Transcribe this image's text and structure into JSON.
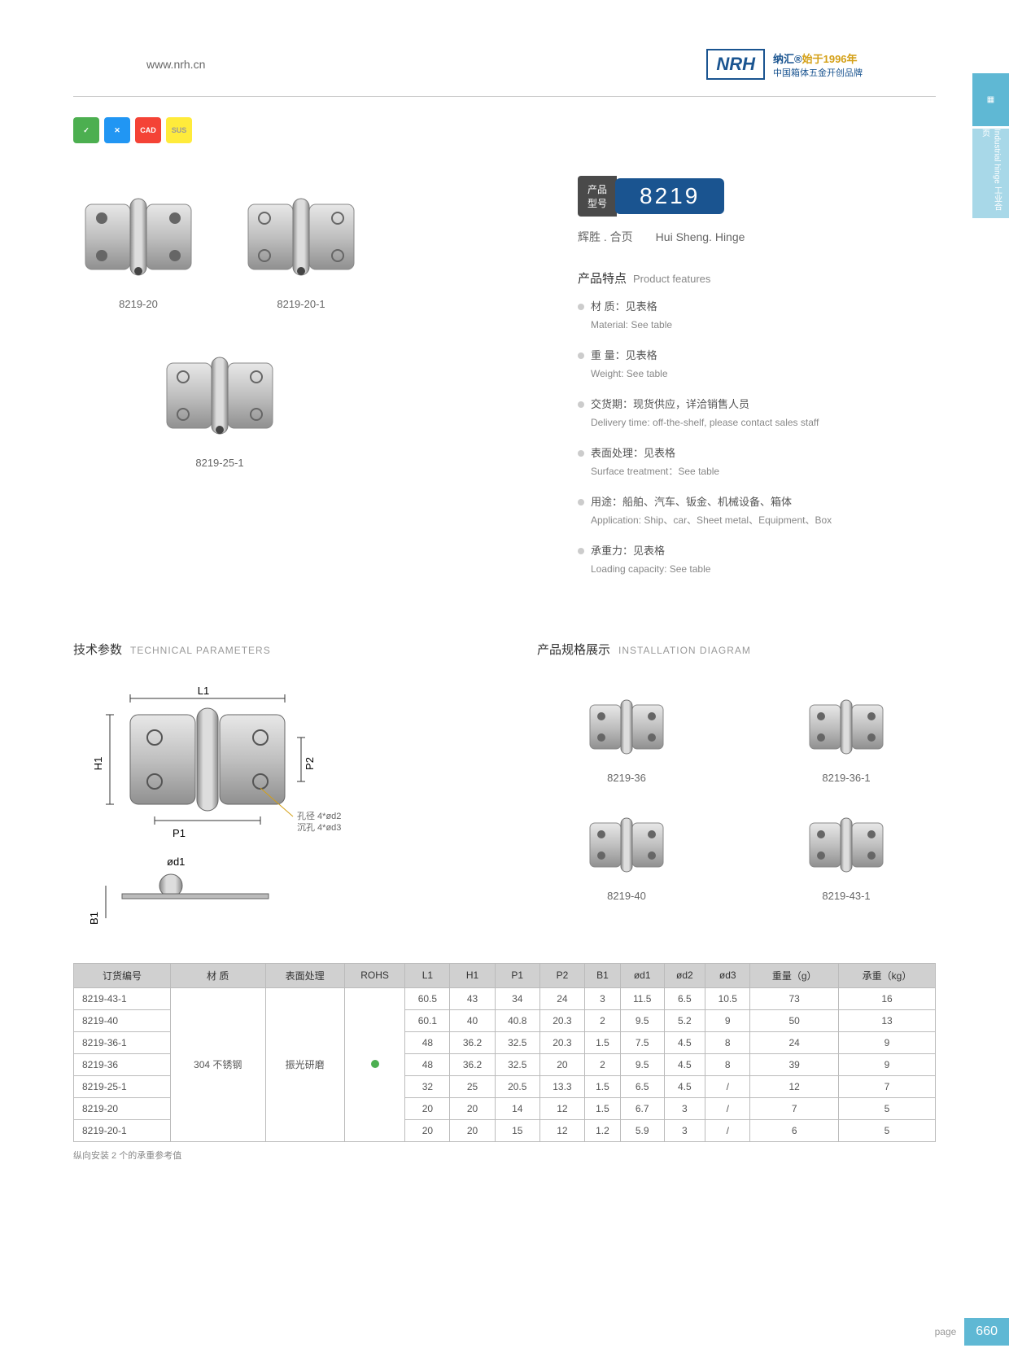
{
  "header": {
    "url": "www.nrh.cn",
    "logo": "NRH",
    "tagline_cn": "纳汇",
    "tagline_year": "始于1996年",
    "tagline_sub": "中国箱体五金开创品牌"
  },
  "side": {
    "tab1": "",
    "tab2": "Industrial hinge 工业合页"
  },
  "badges": [
    "",
    "",
    "CAD",
    "SUS"
  ],
  "model": {
    "tag": "产品\n型号",
    "number": "8219",
    "subtitle_cn": "辉胜 . 合页",
    "subtitle_en": "Hui Sheng. Hinge"
  },
  "products": [
    {
      "label": "8219-20"
    },
    {
      "label": "8219-20-1"
    },
    {
      "label": "8219-25-1"
    }
  ],
  "features": {
    "title_cn": "产品特点",
    "title_en": "Product features",
    "items": [
      {
        "cn": "材 质：见表格",
        "en": "Material: See table"
      },
      {
        "cn": "重 量：见表格",
        "en": "Weight: See table"
      },
      {
        "cn": "交货期：现货供应，详洽销售人员",
        "en": "Delivery time: off-the-shelf, please contact sales staff"
      },
      {
        "cn": "表面处理：见表格",
        "en": "Surface treatment：See table"
      },
      {
        "cn": "用途：船舶、汽车、钣金、机械设备、箱体",
        "en": "Application: Ship、car、Sheet metal、Equipment、Box"
      },
      {
        "cn": "承重力：见表格",
        "en": "Loading capacity: See table"
      }
    ]
  },
  "tech": {
    "title_cn": "技术参数",
    "title_en": "TECHNICAL PARAMETERS",
    "labels": {
      "L1": "L1",
      "H1": "H1",
      "P1": "P1",
      "P2": "P2",
      "B1": "B1",
      "od1": "ød1",
      "note1": "孔径 4*ød2",
      "note2": "沉孔 4*ød3"
    }
  },
  "install": {
    "title_cn": "产品规格展示",
    "title_en": "INSTALLATION DIAGRAM",
    "items": [
      "8219-36",
      "8219-36-1",
      "8219-40",
      "8219-43-1"
    ]
  },
  "table": {
    "headers": [
      "订货编号",
      "材 质",
      "表面处理",
      "ROHS",
      "L1",
      "H1",
      "P1",
      "P2",
      "B1",
      "ød1",
      "ød2",
      "ød3",
      "重量（g）",
      "承重（kg）"
    ],
    "material": "304 不锈钢",
    "surface": "振光研磨",
    "rows": [
      [
        "8219-43-1",
        "60.5",
        "43",
        "34",
        "24",
        "3",
        "11.5",
        "6.5",
        "10.5",
        "73",
        "16"
      ],
      [
        "8219-40",
        "60.1",
        "40",
        "40.8",
        "20.3",
        "2",
        "9.5",
        "5.2",
        "9",
        "50",
        "13"
      ],
      [
        "8219-36-1",
        "48",
        "36.2",
        "32.5",
        "20.3",
        "1.5",
        "7.5",
        "4.5",
        "8",
        "24",
        "9"
      ],
      [
        "8219-36",
        "48",
        "36.2",
        "32.5",
        "20",
        "2",
        "9.5",
        "4.5",
        "8",
        "39",
        "9"
      ],
      [
        "8219-25-1",
        "32",
        "25",
        "20.5",
        "13.3",
        "1.5",
        "6.5",
        "4.5",
        "/",
        "12",
        "7"
      ],
      [
        "8219-20",
        "20",
        "20",
        "14",
        "12",
        "1.5",
        "6.7",
        "3",
        "/",
        "7",
        "5"
      ],
      [
        "8219-20-1",
        "20",
        "20",
        "15",
        "12",
        "1.2",
        "5.9",
        "3",
        "/",
        "6",
        "5"
      ]
    ],
    "note": "纵向安装 2 个的承重参考值"
  },
  "footer": {
    "label": "page",
    "num": "660"
  }
}
